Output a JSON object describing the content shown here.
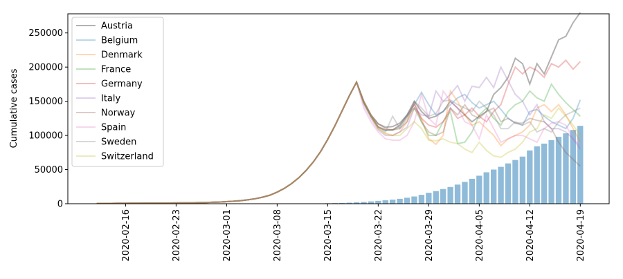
{
  "chart_data": {
    "type": "line",
    "ylabel": "Cumulative cases",
    "x": [
      "2020-02-12",
      "2020-02-13",
      "2020-02-14",
      "2020-02-15",
      "2020-02-16",
      "2020-02-17",
      "2020-02-18",
      "2020-02-19",
      "2020-02-20",
      "2020-02-21",
      "2020-02-22",
      "2020-02-23",
      "2020-02-24",
      "2020-02-25",
      "2020-02-26",
      "2020-02-27",
      "2020-02-28",
      "2020-02-29",
      "2020-03-01",
      "2020-03-02",
      "2020-03-03",
      "2020-03-04",
      "2020-03-05",
      "2020-03-06",
      "2020-03-07",
      "2020-03-08",
      "2020-03-09",
      "2020-03-10",
      "2020-03-11",
      "2020-03-12",
      "2020-03-13",
      "2020-03-14",
      "2020-03-15",
      "2020-03-16",
      "2020-03-17",
      "2020-03-18",
      "2020-03-19",
      "2020-03-20",
      "2020-03-21",
      "2020-03-22",
      "2020-03-23",
      "2020-03-24",
      "2020-03-25",
      "2020-03-26",
      "2020-03-27",
      "2020-03-28",
      "2020-03-29",
      "2020-03-30",
      "2020-03-31",
      "2020-04-01",
      "2020-04-02",
      "2020-04-03",
      "2020-04-04",
      "2020-04-05",
      "2020-04-06",
      "2020-04-07",
      "2020-04-08",
      "2020-04-09",
      "2020-04-10",
      "2020-04-11",
      "2020-04-12",
      "2020-04-13",
      "2020-04-14",
      "2020-04-15",
      "2020-04-16",
      "2020-04-17",
      "2020-04-18",
      "2020-04-19"
    ],
    "series": [
      {
        "name": "Austria",
        "color": "#000000",
        "values": [
          500,
          530,
          560,
          600,
          650,
          700,
          760,
          830,
          900,
          980,
          1070,
          1170,
          1300,
          1450,
          1620,
          1800,
          2100,
          2450,
          3000,
          3700,
          4600,
          5800,
          7400,
          9600,
          12500,
          17000,
          22500,
          29500,
          38000,
          48500,
          61000,
          76000,
          94000,
          114000,
          136000,
          158000,
          178000,
          150000,
          130000,
          117000,
          112000,
          113000,
          118000,
          130000,
          150000,
          135000,
          125000,
          128000,
          135000,
          150000,
          140000,
          130000,
          120000,
          128000,
          135000,
          160000,
          170000,
          185000,
          213000,
          205000,
          175000,
          205000,
          190000,
          215000,
          240000,
          245000,
          265000,
          280000
        ]
      },
      {
        "name": "Belgium",
        "color": "#1f77b4",
        "values": [
          500,
          530,
          560,
          600,
          650,
          700,
          760,
          830,
          900,
          980,
          1070,
          1170,
          1300,
          1450,
          1620,
          1800,
          2100,
          2450,
          3000,
          3700,
          4600,
          5800,
          7400,
          9600,
          12500,
          17000,
          22500,
          29500,
          38000,
          48500,
          61000,
          76000,
          94000,
          114000,
          136000,
          158000,
          178000,
          148000,
          128000,
          112000,
          107000,
          108000,
          115000,
          130000,
          145000,
          163000,
          145000,
          130000,
          135000,
          145000,
          155000,
          160000,
          148000,
          140000,
          145000,
          150000,
          138000,
          125000,
          118000,
          115000,
          135000,
          138000,
          128000,
          120000,
          115000,
          110000,
          125000,
          152000
        ]
      },
      {
        "name": "Denmark",
        "color": "#ff7f0e",
        "values": [
          500,
          530,
          560,
          600,
          650,
          700,
          760,
          830,
          900,
          980,
          1070,
          1170,
          1300,
          1450,
          1620,
          1800,
          2100,
          2450,
          3000,
          3700,
          4600,
          5800,
          7400,
          9600,
          12500,
          17000,
          22500,
          29500,
          38000,
          48500,
          61000,
          76000,
          94000,
          114000,
          136000,
          158000,
          178000,
          148000,
          128000,
          110000,
          103000,
          100000,
          105000,
          120000,
          140000,
          125000,
          95000,
          87000,
          100000,
          165000,
          150000,
          130000,
          115000,
          120000,
          110000,
          100000,
          85000,
          95000,
          100000,
          105000,
          115000,
          140000,
          145000,
          135000,
          145000,
          130000,
          110000,
          90000
        ]
      },
      {
        "name": "France",
        "color": "#2ca02c",
        "values": [
          500,
          530,
          560,
          600,
          650,
          700,
          760,
          830,
          900,
          980,
          1070,
          1170,
          1300,
          1450,
          1620,
          1800,
          2100,
          2450,
          3000,
          3700,
          4600,
          5800,
          7400,
          9600,
          12500,
          17000,
          22500,
          29500,
          38000,
          48500,
          61000,
          76000,
          94000,
          114000,
          136000,
          158000,
          178000,
          148000,
          128000,
          112000,
          108000,
          108000,
          112000,
          128000,
          140000,
          120000,
          100000,
          100000,
          120000,
          135000,
          88000,
          90000,
          105000,
          130000,
          140000,
          125000,
          115000,
          135000,
          145000,
          150000,
          165000,
          155000,
          150000,
          175000,
          160000,
          148000,
          138000,
          128000
        ]
      },
      {
        "name": "Germany",
        "color": "#d62728",
        "values": [
          500,
          530,
          560,
          600,
          650,
          700,
          760,
          830,
          900,
          980,
          1070,
          1170,
          1300,
          1450,
          1620,
          1800,
          2100,
          2450,
          3000,
          3700,
          4600,
          5800,
          7400,
          9600,
          12500,
          17000,
          22500,
          29500,
          38000,
          48500,
          61000,
          76000,
          94000,
          114000,
          136000,
          158000,
          178000,
          148000,
          128000,
          113000,
          108000,
          108000,
          115000,
          128000,
          145000,
          125000,
          115000,
          112000,
          120000,
          140000,
          125000,
          130000,
          140000,
          128000,
          120000,
          135000,
          145000,
          175000,
          200000,
          190000,
          200000,
          195000,
          185000,
          205000,
          200000,
          210000,
          197000,
          208000
        ]
      },
      {
        "name": "Italy",
        "color": "#9467bd",
        "values": [
          500,
          530,
          560,
          600,
          650,
          700,
          760,
          830,
          900,
          980,
          1070,
          1170,
          1300,
          1450,
          1620,
          1800,
          2100,
          2450,
          3000,
          3700,
          4600,
          5800,
          7400,
          9600,
          12500,
          17000,
          22500,
          29500,
          38000,
          48500,
          61000,
          76000,
          94000,
          114000,
          136000,
          158000,
          178000,
          145000,
          125000,
          108000,
          100000,
          100000,
          105000,
          112000,
          140000,
          130000,
          128000,
          165000,
          150000,
          160000,
          173000,
          150000,
          172000,
          170000,
          185000,
          170000,
          200000,
          180000,
          160000,
          150000,
          130000,
          145000,
          120000,
          110000,
          110000,
          105000,
          95000,
          80000
        ]
      },
      {
        "name": "Norway",
        "color": "#8c564b",
        "values": [
          500,
          530,
          560,
          600,
          650,
          700,
          760,
          830,
          900,
          980,
          1070,
          1170,
          1300,
          1450,
          1620,
          1800,
          2100,
          2450,
          3000,
          3700,
          4600,
          5800,
          7400,
          9600,
          12500,
          17000,
          22500,
          29500,
          38000,
          48500,
          61000,
          76000,
          94000,
          114000,
          136000,
          158000,
          178000,
          150000,
          130000,
          117000,
          110000,
          108000,
          110000,
          120000,
          148000,
          120000,
          105000,
          100000,
          105000,
          140000,
          130000,
          145000,
          130000,
          125000,
          135000,
          140000,
          120000,
          125000,
          118000,
          118000,
          125000,
          122000,
          120000,
          110000,
          90000,
          75000,
          65000,
          55000
        ]
      },
      {
        "name": "Spain",
        "color": "#e377c2",
        "values": [
          500,
          530,
          560,
          600,
          650,
          700,
          760,
          830,
          900,
          980,
          1070,
          1170,
          1300,
          1450,
          1620,
          1800,
          2100,
          2450,
          3000,
          3700,
          4600,
          5800,
          7400,
          9600,
          12500,
          17000,
          22500,
          29500,
          38000,
          48500,
          61000,
          76000,
          94000,
          114000,
          136000,
          158000,
          178000,
          140000,
          120000,
          105000,
          95000,
          93000,
          93000,
          100000,
          120000,
          160000,
          125000,
          115000,
          165000,
          150000,
          140000,
          120000,
          115000,
          95000,
          130000,
          110000,
          90000,
          95000,
          100000,
          100000,
          95000,
          90000,
          110000,
          118000,
          120000,
          115000,
          95000,
          85000
        ]
      },
      {
        "name": "Sweden",
        "color": "#7f7f7f",
        "values": [
          500,
          530,
          560,
          600,
          650,
          700,
          760,
          830,
          900,
          980,
          1070,
          1170,
          1300,
          1450,
          1620,
          1800,
          2100,
          2450,
          3000,
          3700,
          4600,
          5800,
          7400,
          9600,
          12500,
          17000,
          22500,
          29500,
          38000,
          48500,
          61000,
          76000,
          94000,
          114000,
          136000,
          158000,
          178000,
          148000,
          128000,
          112000,
          105000,
          128000,
          110000,
          125000,
          150000,
          140000,
          128000,
          132000,
          150000,
          152000,
          145000,
          140000,
          135000,
          150000,
          140000,
          130000,
          110000,
          110000,
          120000,
          115000,
          120000,
          105000,
          110000,
          105000,
          120000,
          130000,
          135000,
          140000
        ]
      },
      {
        "name": "Switzerland",
        "color": "#bcbd22",
        "values": [
          500,
          530,
          560,
          600,
          650,
          700,
          760,
          830,
          900,
          980,
          1070,
          1170,
          1300,
          1450,
          1620,
          1800,
          2100,
          2450,
          3000,
          3700,
          4600,
          5800,
          7400,
          9600,
          12500,
          17000,
          22500,
          29500,
          38000,
          48500,
          61000,
          76000,
          94000,
          114000,
          136000,
          158000,
          178000,
          148000,
          128000,
          110000,
          102000,
          100000,
          100000,
          110000,
          120000,
          110000,
          93000,
          92000,
          95000,
          90000,
          88000,
          80000,
          75000,
          90000,
          78000,
          70000,
          68000,
          75000,
          80000,
          90000,
          105000,
          110000,
          130000,
          125000,
          140000,
          128000,
          115000,
          100000
        ]
      }
    ],
    "bars": {
      "color": "#1f77b4",
      "values": [
        null,
        null,
        null,
        null,
        null,
        null,
        null,
        null,
        null,
        null,
        null,
        null,
        null,
        null,
        null,
        null,
        null,
        null,
        null,
        null,
        null,
        null,
        null,
        null,
        null,
        null,
        null,
        null,
        null,
        null,
        300,
        500,
        700,
        900,
        1200,
        1600,
        2100,
        2700,
        3400,
        4200,
        5000,
        6000,
        7200,
        8800,
        10600,
        13000,
        16000,
        18500,
        21500,
        24500,
        28000,
        32000,
        36500,
        41000,
        46000,
        50000,
        54000,
        59000,
        64000,
        69000,
        78000,
        84000,
        88000,
        93000,
        98000,
        103000,
        108000,
        114000
      ]
    },
    "line_alpha": 0.3,
    "bar_alpha": 0.5,
    "xlim": [
      "2020-02-08",
      "2020-04-23"
    ],
    "xticks": [
      "2020-02-16",
      "2020-02-23",
      "2020-03-01",
      "2020-03-08",
      "2020-03-15",
      "2020-03-22",
      "2020-03-29",
      "2020-04-05",
      "2020-04-12",
      "2020-04-19"
    ],
    "ylim": [
      0,
      278000
    ],
    "yticks": [
      0,
      50000,
      100000,
      150000,
      200000,
      250000
    ],
    "legend": "upper-left",
    "grid": false
  }
}
